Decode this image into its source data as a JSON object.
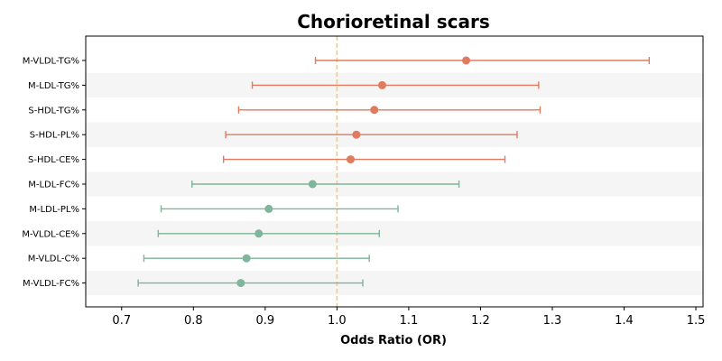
{
  "chart_data": {
    "type": "forest",
    "title": "Chorioretinal scars",
    "xlabel": "Odds Ratio (OR)",
    "ylabel": "",
    "xlim": [
      0.65,
      1.51
    ],
    "xticks": [
      "0.7",
      "0.8",
      "0.9",
      "1.0",
      "1.1",
      "1.2",
      "1.3",
      "1.4",
      "1.5"
    ],
    "reference_line": 1.0,
    "colors": {
      "above": "#e07b5f",
      "below": "#7fb59a",
      "reference": "#f3c987",
      "band": "#f5f5f5"
    },
    "rows": [
      {
        "label": "M-VLDL-TG%",
        "or": 1.18,
        "lo": 0.97,
        "hi": 1.435
      },
      {
        "label": "M-LDL-TG%",
        "or": 1.063,
        "lo": 0.882,
        "hi": 1.281
      },
      {
        "label": "S-HDL-TG%",
        "or": 1.052,
        "lo": 0.863,
        "hi": 1.283
      },
      {
        "label": "S-HDL-PL%",
        "or": 1.027,
        "lo": 0.845,
        "hi": 1.251
      },
      {
        "label": "S-HDL-CE%",
        "or": 1.019,
        "lo": 0.842,
        "hi": 1.234
      },
      {
        "label": "M-LDL-FC%",
        "or": 0.966,
        "lo": 0.798,
        "hi": 1.17
      },
      {
        "label": "M-LDL-PL%",
        "or": 0.905,
        "lo": 0.755,
        "hi": 1.085
      },
      {
        "label": "M-VLDL-CE%",
        "or": 0.891,
        "lo": 0.751,
        "hi": 1.059
      },
      {
        "label": "M-VLDL-C%",
        "or": 0.874,
        "lo": 0.731,
        "hi": 1.045
      },
      {
        "label": "M-VLDL-FC%",
        "or": 0.866,
        "lo": 0.723,
        "hi": 1.036
      }
    ]
  }
}
